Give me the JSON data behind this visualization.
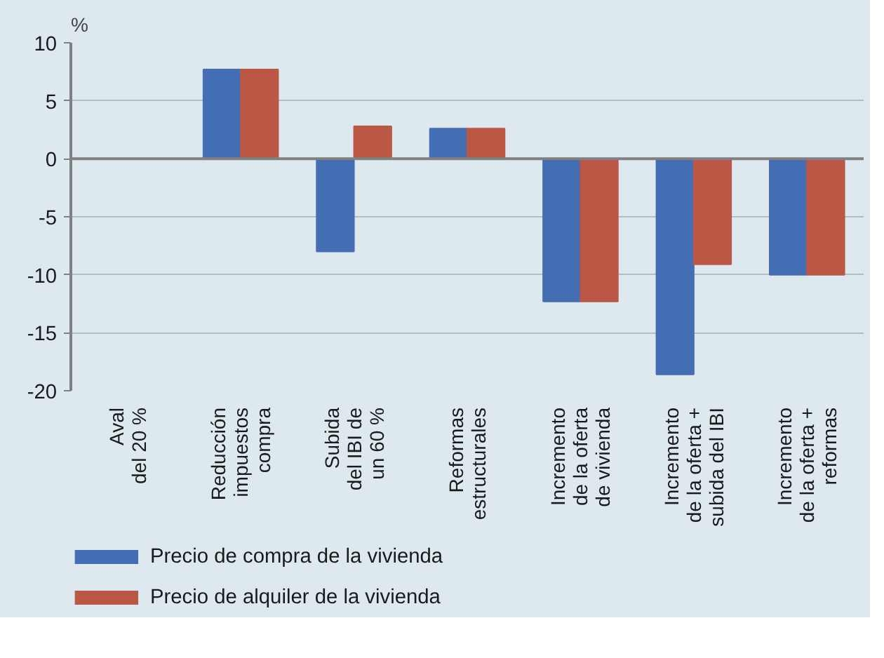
{
  "chart_data": {
    "type": "bar",
    "ylabel": "%",
    "categories": [
      "Aval\ndel 20 %",
      "Reducción\nimpuestos\ncompra",
      "Subida\ndel IBI de\nun 60 %",
      "Reformas\nestructurales",
      "Incremento\nde la oferta\nde vivienda",
      "Incremento\nde la oferta +\nsubida del IBI",
      "Incremento\nde la oferta +\nreformas"
    ],
    "series": [
      {
        "name": "Precio de compra de la vivienda",
        "color": "#436eb3",
        "values": [
          0,
          7.7,
          -8.0,
          2.6,
          -12.3,
          -18.6,
          -10
        ]
      },
      {
        "name": "Precio de alquiler de la vivienda",
        "color": "#bb5745",
        "values": [
          0,
          7.7,
          2.8,
          2.6,
          -12.3,
          -9.1,
          -10
        ]
      }
    ],
    "ylim": [
      -20,
      10
    ],
    "yticks": [
      -20,
      -15,
      -10,
      -5,
      0,
      5,
      10
    ],
    "grid": "y",
    "legend": "bottom"
  }
}
